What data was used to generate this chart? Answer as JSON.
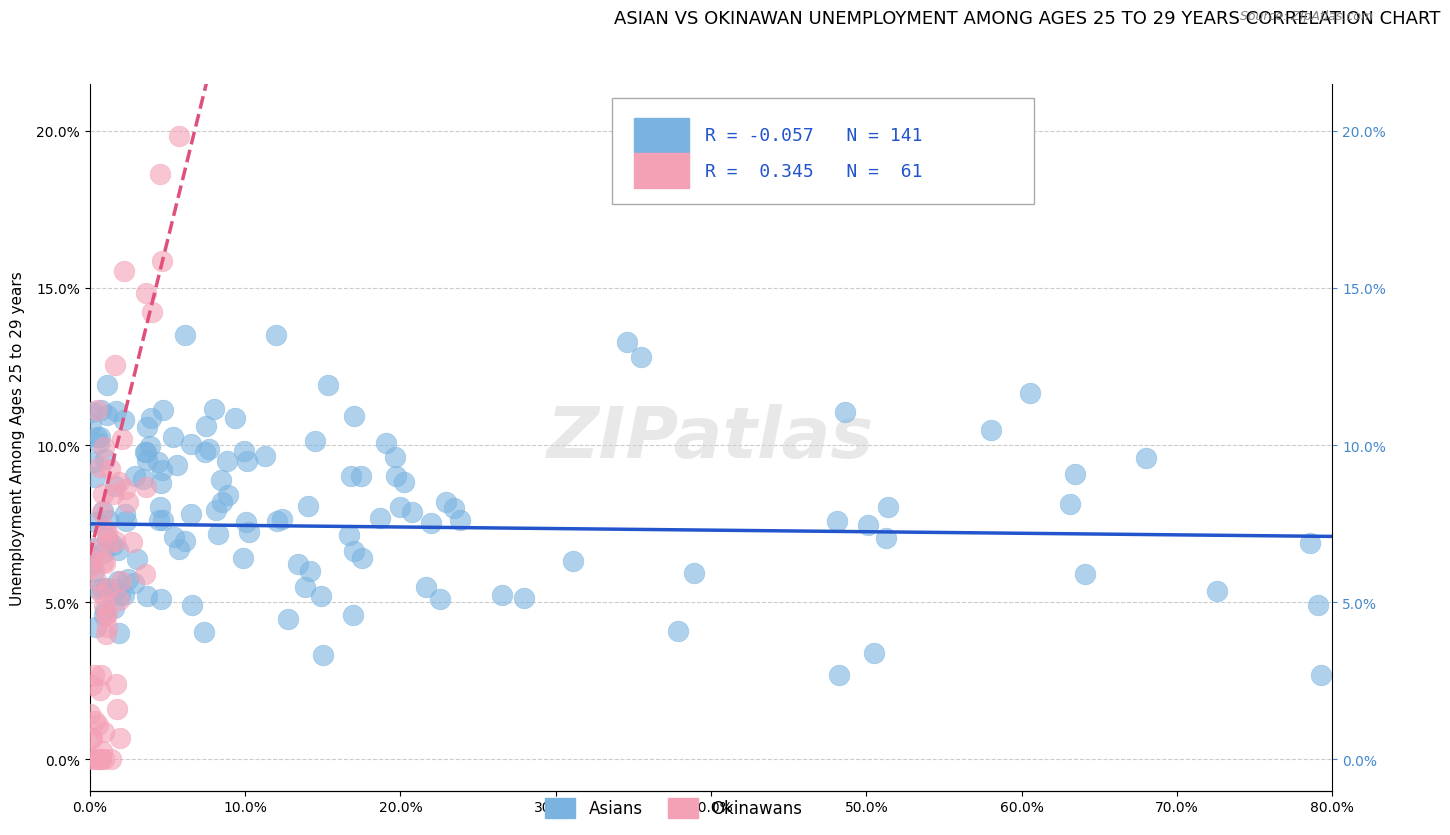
{
  "title": "ASIAN VS OKINAWAN UNEMPLOYMENT AMONG AGES 25 TO 29 YEARS CORRELATION CHART",
  "source": "Source: ZipAtlas.com",
  "xlabel": "",
  "ylabel": "Unemployment Among Ages 25 to 29 years",
  "xlim": [
    0.0,
    0.8
  ],
  "ylim": [
    -0.01,
    0.215
  ],
  "xticks": [
    0.0,
    0.1,
    0.2,
    0.3,
    0.4,
    0.5,
    0.6,
    0.7,
    0.8
  ],
  "xticklabels": [
    "0.0%",
    "10.0%",
    "20.0%",
    "30.0%",
    "40.0%",
    "50.0%",
    "60.0%",
    "70.0%",
    "80.0%"
  ],
  "yticks": [
    0.0,
    0.05,
    0.1,
    0.15,
    0.2
  ],
  "yticklabels": [
    "0.0%",
    "5.0%",
    "10.0%",
    "15.0%",
    "20.0%"
  ],
  "asian_color": "#7ab3e0",
  "okinawan_color": "#f4a0b5",
  "asian_R": -0.057,
  "asian_N": 141,
  "okinawan_R": 0.345,
  "okinawan_N": 61,
  "trend_blue": "#2255cc",
  "trend_pink": "#e0507a",
  "background_color": "#ffffff",
  "grid_color": "#cccccc",
  "watermark": "ZIPatlas",
  "title_fontsize": 13,
  "axis_label_fontsize": 11,
  "tick_fontsize": 10,
  "legend_fontsize": 13,
  "right_tick_color": "#4488cc",
  "asian_seed": 42,
  "okinawan_seed": 7
}
